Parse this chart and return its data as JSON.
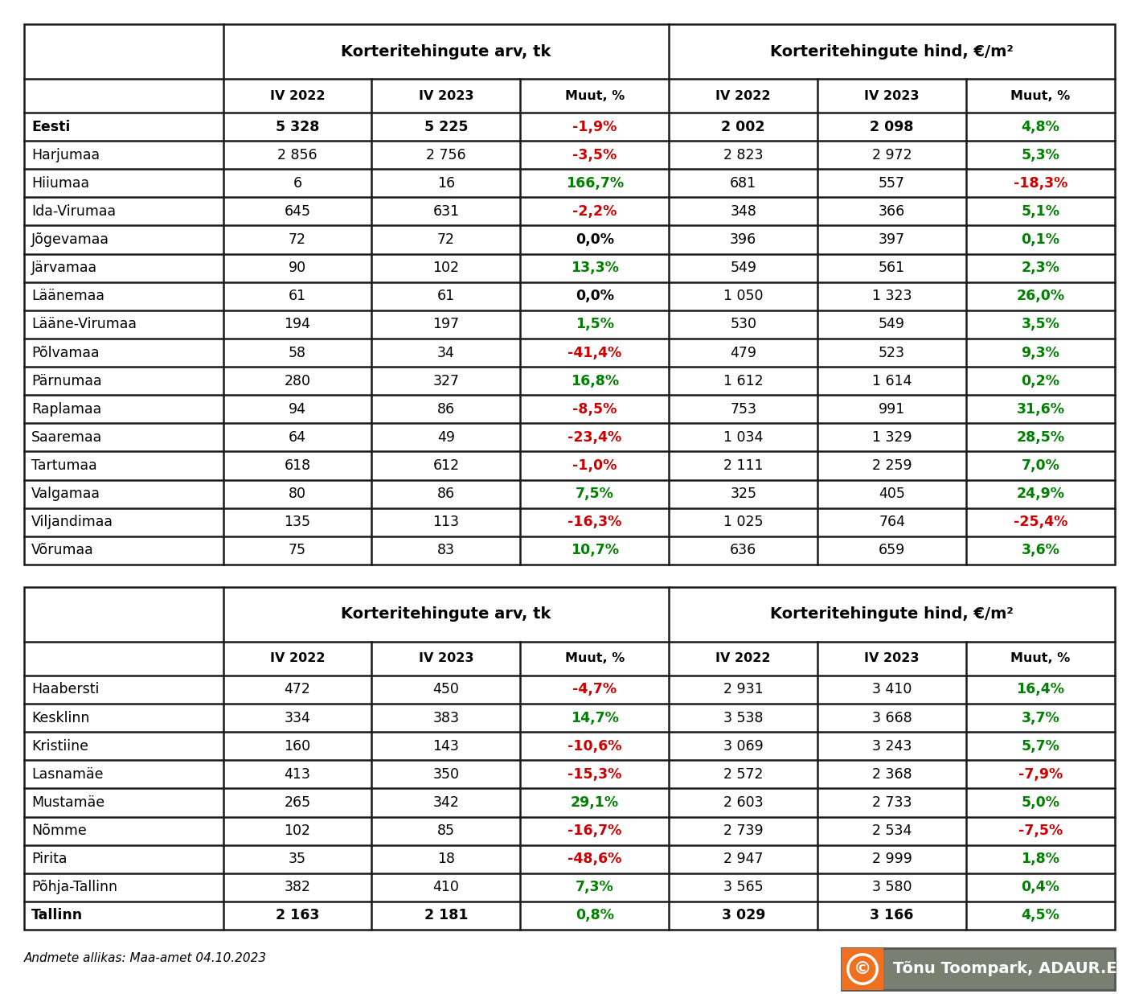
{
  "table1": {
    "header1": "Korteritehingute arv, tk",
    "header2": "Korteritehingute hind, €/m²",
    "subheaders": [
      "IV 2022",
      "IV 2023",
      "Muut, %",
      "IV 2022",
      "IV 2023",
      "Muut, %"
    ],
    "rows": [
      {
        "name": "Eesti",
        "bold": true,
        "v1": "5 328",
        "v2": "5 225",
        "p1": "-1,9%",
        "v3": "2 002",
        "v4": "2 098",
        "p2": "4,8%"
      },
      {
        "name": "Harjumaa",
        "bold": false,
        "v1": "2 856",
        "v2": "2 756",
        "p1": "-3,5%",
        "v3": "2 823",
        "v4": "2 972",
        "p2": "5,3%"
      },
      {
        "name": "Hiiumaa",
        "bold": false,
        "v1": "6",
        "v2": "16",
        "p1": "166,7%",
        "v3": "681",
        "v4": "557",
        "p2": "-18,3%"
      },
      {
        "name": "Ida-Virumaa",
        "bold": false,
        "v1": "645",
        "v2": "631",
        "p1": "-2,2%",
        "v3": "348",
        "v4": "366",
        "p2": "5,1%"
      },
      {
        "name": "Jõgevamaa",
        "bold": false,
        "v1": "72",
        "v2": "72",
        "p1": "0,0%",
        "v3": "396",
        "v4": "397",
        "p2": "0,1%"
      },
      {
        "name": "Järvamaa",
        "bold": false,
        "v1": "90",
        "v2": "102",
        "p1": "13,3%",
        "v3": "549",
        "v4": "561",
        "p2": "2,3%"
      },
      {
        "name": "Läänemaa",
        "bold": false,
        "v1": "61",
        "v2": "61",
        "p1": "0,0%",
        "v3": "1 050",
        "v4": "1 323",
        "p2": "26,0%"
      },
      {
        "name": "Lääne-Virumaa",
        "bold": false,
        "v1": "194",
        "v2": "197",
        "p1": "1,5%",
        "v3": "530",
        "v4": "549",
        "p2": "3,5%"
      },
      {
        "name": "Põlvamaa",
        "bold": false,
        "v1": "58",
        "v2": "34",
        "p1": "-41,4%",
        "v3": "479",
        "v4": "523",
        "p2": "9,3%"
      },
      {
        "name": "Pärnumaa",
        "bold": false,
        "v1": "280",
        "v2": "327",
        "p1": "16,8%",
        "v3": "1 612",
        "v4": "1 614",
        "p2": "0,2%"
      },
      {
        "name": "Raplamaa",
        "bold": false,
        "v1": "94",
        "v2": "86",
        "p1": "-8,5%",
        "v3": "753",
        "v4": "991",
        "p2": "31,6%"
      },
      {
        "name": "Saaremaa",
        "bold": false,
        "v1": "64",
        "v2": "49",
        "p1": "-23,4%",
        "v3": "1 034",
        "v4": "1 329",
        "p2": "28,5%"
      },
      {
        "name": "Tartumaa",
        "bold": false,
        "v1": "618",
        "v2": "612",
        "p1": "-1,0%",
        "v3": "2 111",
        "v4": "2 259",
        "p2": "7,0%"
      },
      {
        "name": "Valgamaa",
        "bold": false,
        "v1": "80",
        "v2": "86",
        "p1": "7,5%",
        "v3": "325",
        "v4": "405",
        "p2": "24,9%"
      },
      {
        "name": "Viljandimaa",
        "bold": false,
        "v1": "135",
        "v2": "113",
        "p1": "-16,3%",
        "v3": "1 025",
        "v4": "764",
        "p2": "-25,4%"
      },
      {
        "name": "Võrumaa",
        "bold": false,
        "v1": "75",
        "v2": "83",
        "p1": "10,7%",
        "v3": "636",
        "v4": "659",
        "p2": "3,6%"
      }
    ]
  },
  "table2": {
    "header1": "Korteritehingute arv, tk",
    "header2": "Korteritehingute hind, €/m²",
    "subheaders": [
      "IV 2022",
      "IV 2023",
      "Muut, %",
      "IV 2022",
      "IV 2023",
      "Muut, %"
    ],
    "rows": [
      {
        "name": "Haabersti",
        "bold": false,
        "v1": "472",
        "v2": "450",
        "p1": "-4,7%",
        "v3": "2 931",
        "v4": "3 410",
        "p2": "16,4%"
      },
      {
        "name": "Kesklinn",
        "bold": false,
        "v1": "334",
        "v2": "383",
        "p1": "14,7%",
        "v3": "3 538",
        "v4": "3 668",
        "p2": "3,7%"
      },
      {
        "name": "Kristiine",
        "bold": false,
        "v1": "160",
        "v2": "143",
        "p1": "-10,6%",
        "v3": "3 069",
        "v4": "3 243",
        "p2": "5,7%"
      },
      {
        "name": "Lasnamäe",
        "bold": false,
        "v1": "413",
        "v2": "350",
        "p1": "-15,3%",
        "v3": "2 572",
        "v4": "2 368",
        "p2": "-7,9%"
      },
      {
        "name": "Mustamäe",
        "bold": false,
        "v1": "265",
        "v2": "342",
        "p1": "29,1%",
        "v3": "2 603",
        "v4": "2 733",
        "p2": "5,0%"
      },
      {
        "name": "Nõmme",
        "bold": false,
        "v1": "102",
        "v2": "85",
        "p1": "-16,7%",
        "v3": "2 739",
        "v4": "2 534",
        "p2": "-7,5%"
      },
      {
        "name": "Pirita",
        "bold": false,
        "v1": "35",
        "v2": "18",
        "p1": "-48,6%",
        "v3": "2 947",
        "v4": "2 999",
        "p2": "1,8%"
      },
      {
        "name": "Põhja-Tallinn",
        "bold": false,
        "v1": "382",
        "v2": "410",
        "p1": "7,3%",
        "v3": "3 565",
        "v4": "3 580",
        "p2": "0,4%"
      },
      {
        "name": "Tallinn",
        "bold": true,
        "v1": "2 163",
        "v2": "2 181",
        "p1": "0,8%",
        "v3": "3 029",
        "v4": "3 166",
        "p2": "4,5%"
      }
    ]
  },
  "footer_text": "Andmete allikas: Maa-amet 04.10.2023",
  "watermark_text": "Tõnu Toompark, ADAUR.EE",
  "bg_color": "#ffffff",
  "table_border_color": "#1a1a1a",
  "text_color": "#000000",
  "green_color": "#008000",
  "red_color": "#cc0000",
  "black_pct_color": "#000000",
  "wm_bg": "#7a7f72",
  "wm_orange": "#f07020",
  "wm_text": "#ffffff"
}
